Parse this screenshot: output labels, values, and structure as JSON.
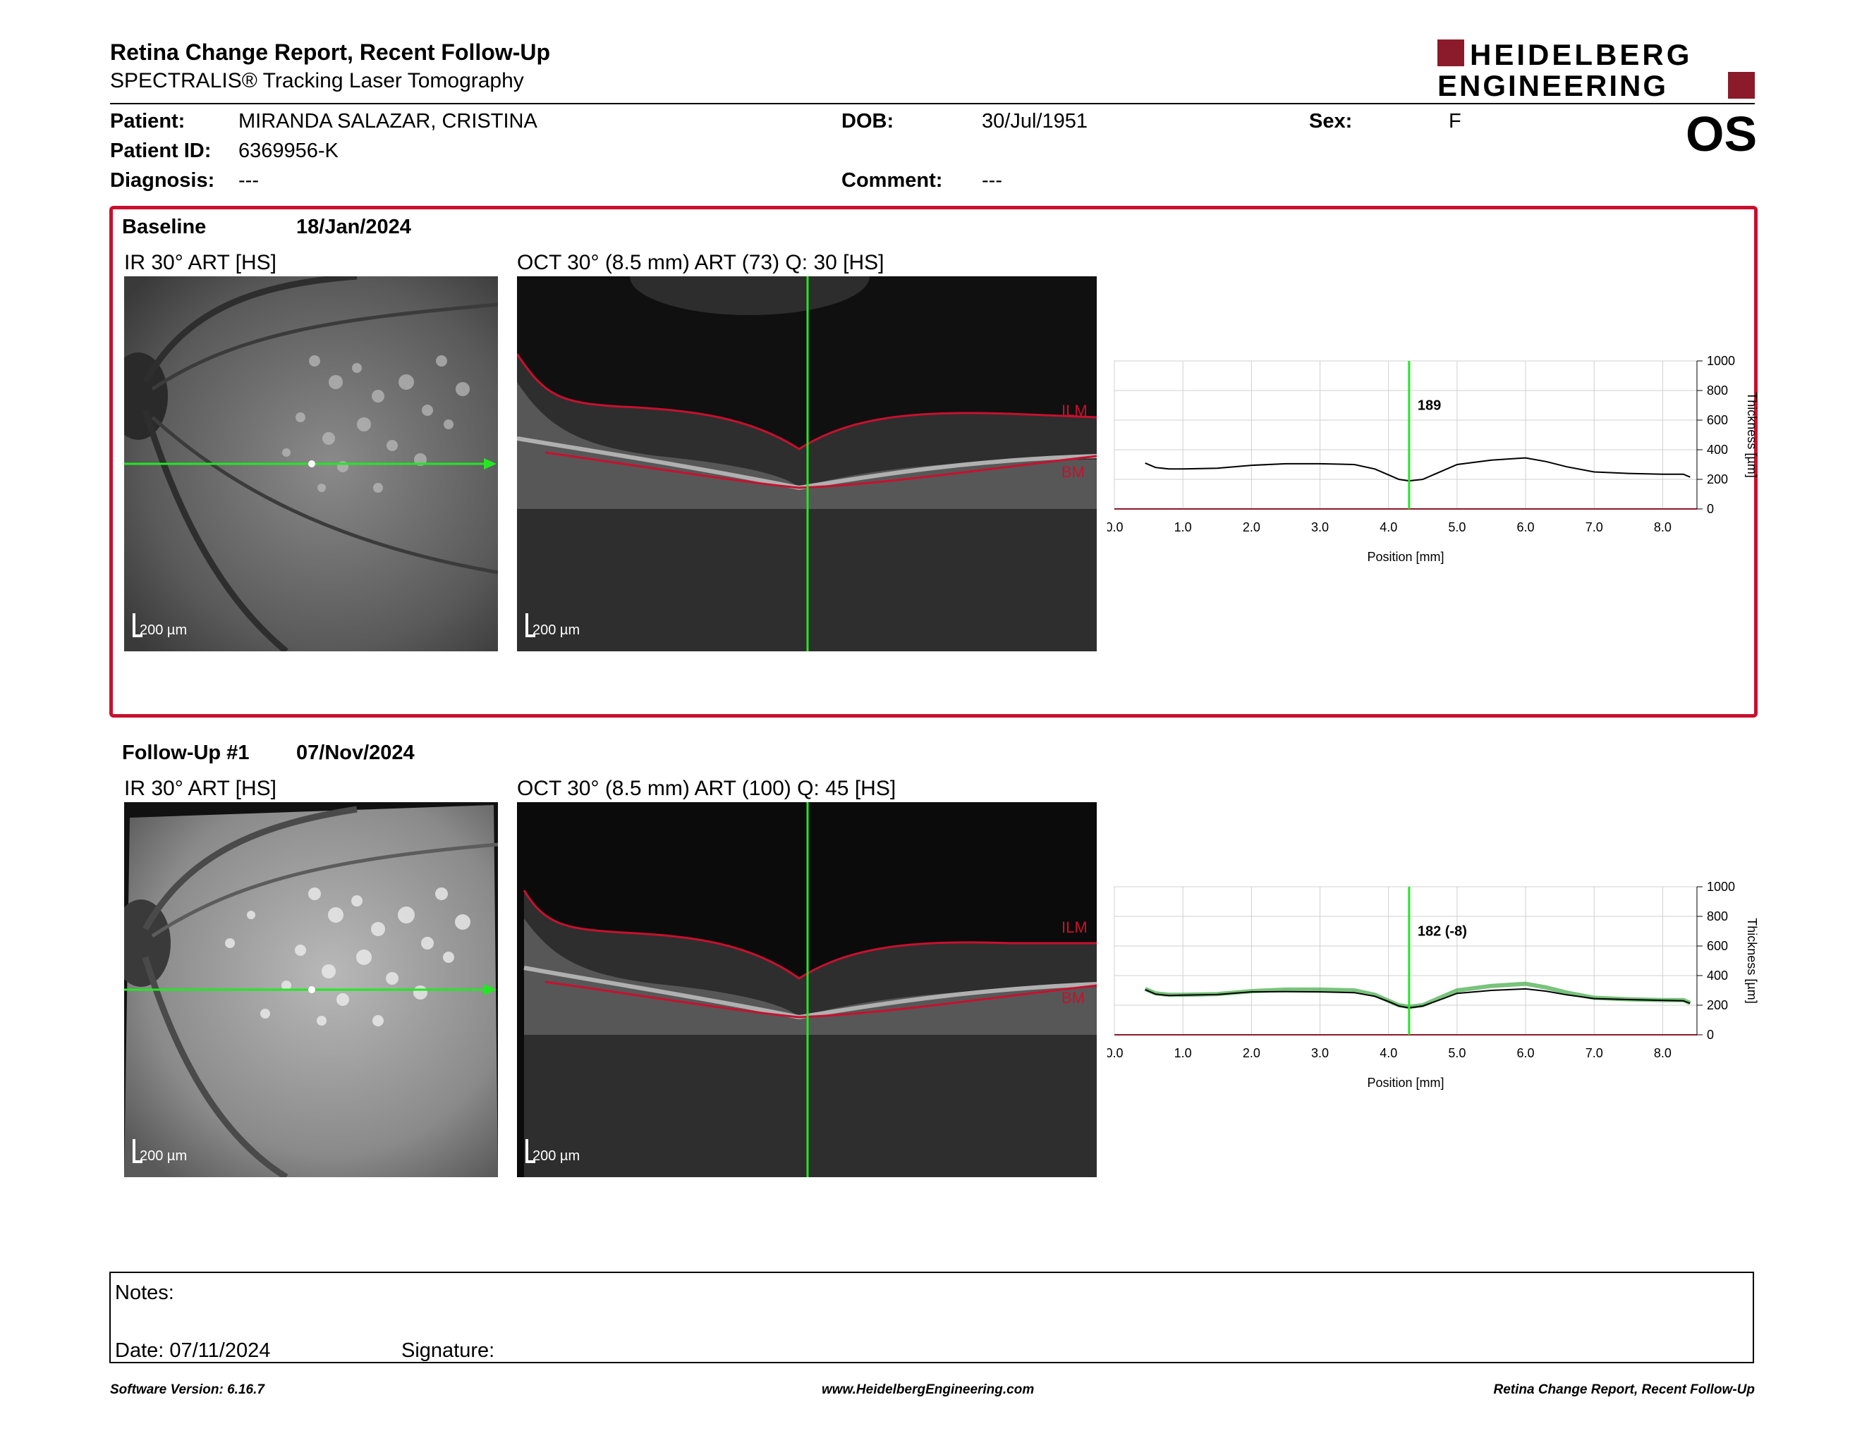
{
  "header": {
    "title": "Retina Change Report, Recent Follow-Up",
    "subtitle": "SPECTRALIS® Tracking Laser Tomography",
    "logo_line1": "HEIDELBERG",
    "logo_line2": "ENGINEERING",
    "brand_color": "#8b1a2b"
  },
  "patient": {
    "patient_label": "Patient:",
    "patient_value": "MIRANDA SALAZAR, CRISTINA",
    "id_label": "Patient ID:",
    "id_value": "6369956-K",
    "diagnosis_label": "Diagnosis:",
    "diagnosis_value": "---",
    "dob_label": "DOB:",
    "dob_value": "30/Jul/1951",
    "comment_label": "Comment:",
    "comment_value": "---",
    "sex_label": "Sex:",
    "sex_value": "F",
    "eye": "OS"
  },
  "baseline": {
    "label": "Baseline",
    "date": "18/Jan/2024",
    "ir_title": "IR 30° ART [HS]",
    "oct_title": "OCT 30° (8.5 mm) ART (73) Q: 30 [HS]",
    "scale_label": "200 µm",
    "ilm_label": "ILM",
    "bm_label": "BM",
    "frame_color": "#c8102e"
  },
  "followup": {
    "label": "Follow-Up #1",
    "date": "07/Nov/2024",
    "ir_title": "IR 30° ART [HS]",
    "oct_title": "OCT 30° (8.5 mm) ART (100) Q: 45 [HS]",
    "scale_label": "200 µm",
    "ilm_label": "ILM",
    "bm_label": "BM"
  },
  "chart_data": [
    {
      "type": "line",
      "xlabel": "Position [mm]",
      "ylabel": "Thickness [µm]",
      "xlim": [
        0,
        8.5
      ],
      "ylim": [
        0,
        1000
      ],
      "x_ticks": [
        "0.0",
        "1.0",
        "2.0",
        "3.0",
        "4.0",
        "5.0",
        "6.0",
        "7.0",
        "8.0"
      ],
      "y_ticks": [
        "0",
        "200",
        "400",
        "600",
        "800",
        "1000"
      ],
      "grid": true,
      "marker_x": 4.3,
      "marker_label": "189",
      "series": [
        {
          "color": "#000000",
          "x": [
            0.45,
            0.6,
            0.8,
            1.0,
            1.5,
            2.0,
            2.5,
            3.0,
            3.5,
            3.8,
            4.0,
            4.15,
            4.3,
            4.5,
            4.8,
            5.0,
            5.5,
            6.0,
            6.3,
            6.6,
            7.0,
            7.5,
            8.0,
            8.3,
            8.4
          ],
          "y": [
            310,
            280,
            270,
            270,
            275,
            295,
            305,
            305,
            300,
            270,
            230,
            200,
            189,
            200,
            260,
            300,
            330,
            345,
            320,
            285,
            250,
            240,
            235,
            235,
            215
          ]
        }
      ]
    },
    {
      "type": "line",
      "xlabel": "Position [mm]",
      "ylabel": "Thickness [µm]",
      "xlim": [
        0,
        8.5
      ],
      "ylim": [
        0,
        1000
      ],
      "x_ticks": [
        "0.0",
        "1.0",
        "2.0",
        "3.0",
        "4.0",
        "5.0",
        "6.0",
        "7.0",
        "8.0"
      ],
      "y_ticks": [
        "0",
        "200",
        "400",
        "600",
        "800",
        "1000"
      ],
      "grid": true,
      "marker_x": 4.3,
      "marker_label": "182 (-8)",
      "series": [
        {
          "color": "#4caf50",
          "x": [
            0.45,
            0.6,
            0.8,
            1.0,
            1.5,
            2.0,
            2.5,
            3.0,
            3.5,
            3.8,
            4.0,
            4.15,
            4.3,
            4.5,
            4.8,
            5.0,
            5.5,
            6.0,
            6.3,
            6.6,
            7.0,
            7.5,
            8.0,
            8.3,
            8.4
          ],
          "y": [
            310,
            280,
            270,
            270,
            275,
            295,
            305,
            305,
            300,
            270,
            230,
            200,
            189,
            200,
            260,
            300,
            330,
            345,
            320,
            285,
            250,
            240,
            235,
            235,
            215
          ]
        },
        {
          "color": "#000000",
          "x": [
            0.45,
            0.6,
            0.8,
            1.0,
            1.5,
            2.0,
            2.5,
            3.0,
            3.5,
            3.8,
            4.0,
            4.15,
            4.3,
            4.5,
            4.8,
            5.0,
            5.5,
            6.0,
            6.3,
            6.6,
            7.0,
            7.5,
            8.0,
            8.3,
            8.4
          ],
          "y": [
            305,
            275,
            265,
            268,
            272,
            290,
            292,
            290,
            285,
            260,
            225,
            195,
            182,
            195,
            245,
            280,
            300,
            310,
            295,
            270,
            245,
            238,
            233,
            230,
            213
          ]
        }
      ]
    }
  ],
  "notes": {
    "notes_label": "Notes:",
    "date_label": "Date: 07/11/2024",
    "signature_label": "Signature:"
  },
  "footer": {
    "software": "Software Version: 6.16.7",
    "website": "www.HeidelbergEngineering.com",
    "report_name": "Retina Change Report, Recent Follow-Up"
  }
}
